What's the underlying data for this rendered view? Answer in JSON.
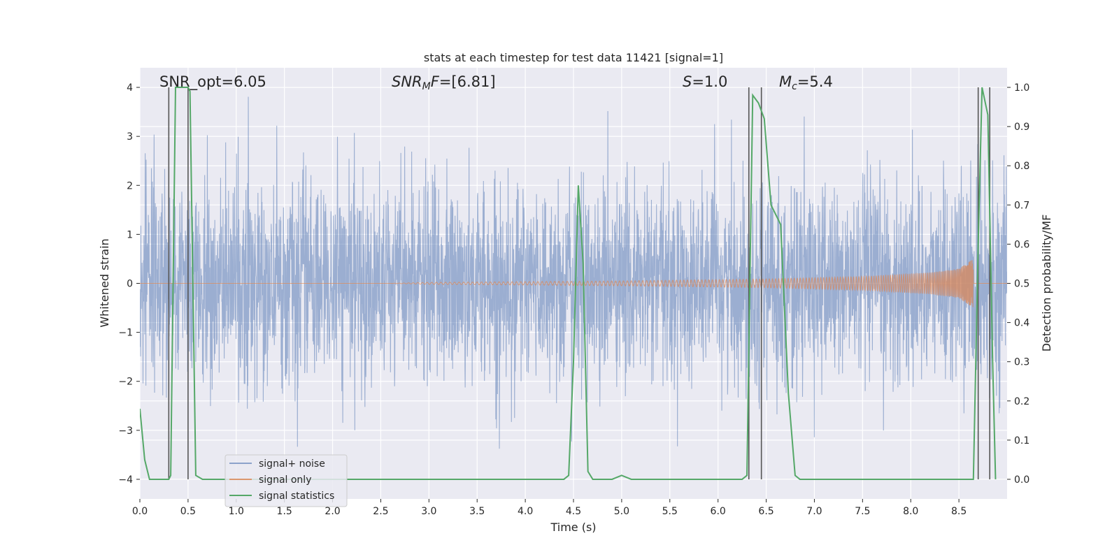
{
  "chart_data": {
    "type": "line",
    "title": "stats at each timestep for test data 11421 [signal=1]",
    "xlabel": "Time (s)",
    "ylabel": "Whitened strain",
    "ylabel_right": "Detection probability/MF",
    "xlim": [
      0.0,
      9.0
    ],
    "ylim": [
      -4.4,
      4.4
    ],
    "ylim_right": [
      -0.05,
      1.05
    ],
    "x_ticks": [
      "0.0",
      "0.5",
      "1.0",
      "1.5",
      "2.0",
      "2.5",
      "3.0",
      "3.5",
      "4.0",
      "4.5",
      "5.0",
      "5.5",
      "6.0",
      "6.5",
      "7.0",
      "7.5",
      "8.0",
      "8.5"
    ],
    "y_ticks": [
      "−4",
      "−3",
      "−2",
      "−1",
      "0",
      "1",
      "2",
      "3",
      "4"
    ],
    "y_ticks_right": [
      "0.0",
      "0.1",
      "0.2",
      "0.3",
      "0.4",
      "0.5",
      "0.6",
      "0.7",
      "0.8",
      "0.9",
      "1.0"
    ],
    "grid": true,
    "legend_position": "lower-left",
    "annotations": {
      "snr_opt": "SNR_opt=6.05",
      "snr_mf_sym": "SNR",
      "snr_mf_sub": "M",
      "snr_mf_f": "F",
      "snr_mf_val": "=[6.81]",
      "s_sym": "S",
      "s_val": "=1.0",
      "mc_sym": "M",
      "mc_sub": "c",
      "mc_val": "=5.4"
    },
    "series": [
      {
        "name": "signal+ noise",
        "color": "#4c72b0",
        "description_values": "white gaussian noise, std≈1, range≈[-3.9, 3.9]"
      },
      {
        "name": "signal only",
        "color": "#dd8452",
        "envelope": {
          "t": [
            3.0,
            5.0,
            6.5,
            7.5,
            8.2,
            8.5,
            8.65
          ],
          "amp": [
            0.02,
            0.05,
            0.09,
            0.14,
            0.22,
            0.3,
            0.5
          ]
        }
      },
      {
        "name": "signal statistics",
        "color": "#55a868",
        "axis": "right",
        "x": [
          0.0,
          0.05,
          0.1,
          0.2,
          0.3,
          0.32,
          0.37,
          0.4,
          0.5,
          0.52,
          0.58,
          0.65,
          4.4,
          4.45,
          4.5,
          4.55,
          4.6,
          4.65,
          4.7,
          4.9,
          5.0,
          5.1,
          6.25,
          6.3,
          6.36,
          6.42,
          6.48,
          6.55,
          6.65,
          6.73,
          6.8,
          6.85,
          6.95,
          7.05,
          8.65,
          8.7,
          8.74,
          8.8,
          8.85,
          8.88
        ],
        "y": [
          0.18,
          0.05,
          0.0,
          0.0,
          0.0,
          0.01,
          1.0,
          1.0,
          1.0,
          0.99,
          0.01,
          0.0,
          0.0,
          0.01,
          0.3,
          0.75,
          0.55,
          0.02,
          0.0,
          0.0,
          0.01,
          0.0,
          0.0,
          0.01,
          0.98,
          0.96,
          0.92,
          0.7,
          0.65,
          0.22,
          0.01,
          0.0,
          0.0,
          0.0,
          0.0,
          0.6,
          1.0,
          0.93,
          0.3,
          0.0
        ]
      }
    ],
    "vlines": {
      "color": "#555555",
      "x": [
        0.3,
        0.5,
        6.32,
        6.45,
        8.7,
        8.82
      ],
      "y_range": [
        -4.0,
        4.0
      ]
    }
  }
}
